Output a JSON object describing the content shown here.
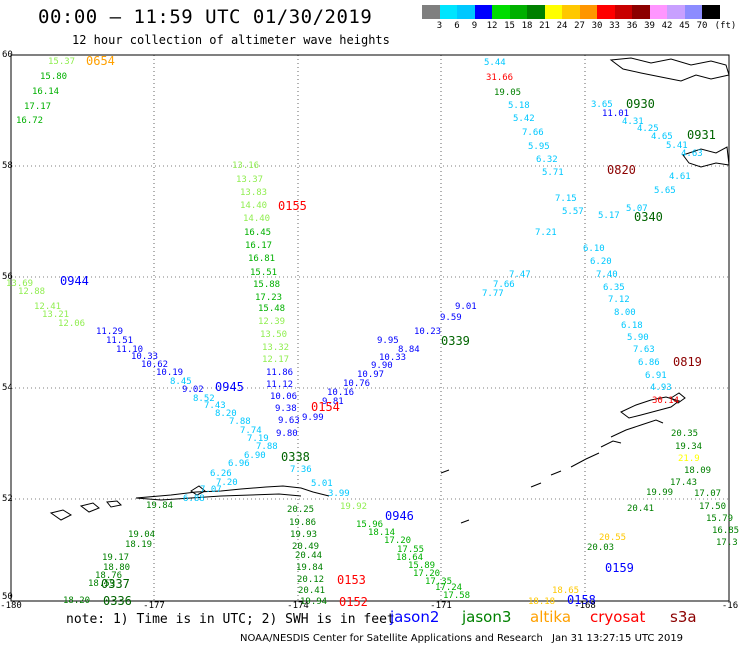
{
  "header": {
    "title": "00:00 – 11:59 UTC 01/30/2019",
    "subtitle": "12 hour collection of altimeter wave heights"
  },
  "colorbar": {
    "unit": "(ft)",
    "labels": [
      "3",
      "6",
      "9",
      "12",
      "15",
      "18",
      "21",
      "24",
      "27",
      "30",
      "33",
      "36",
      "39",
      "42",
      "45",
      "70"
    ],
    "colors": [
      "#7f7f7f",
      "#00e5ff",
      "#00c8ff",
      "#0000ff",
      "#00dd00",
      "#00b000",
      "#008000",
      "#ffff00",
      "#ffc800",
      "#ff9600",
      "#ff0000",
      "#c80000",
      "#8c0000",
      "#ff96ff",
      "#c8a0ff",
      "#8c8cff",
      "#000000"
    ]
  },
  "axes": {
    "y_ticks": [
      "60",
      "58",
      "56",
      "54",
      "52",
      "50"
    ],
    "x_ticks": [
      "-180",
      "-177",
      "-174",
      "-171",
      "-168",
      "-16"
    ]
  },
  "legend": {
    "note": "note: 1) Time is in UTC; 2) SWH is in feet",
    "items": [
      {
        "label": "jason2",
        "color": "#0000ff"
      },
      {
        "label": "jason3",
        "color": "#008000"
      },
      {
        "label": "altika",
        "color": "#ffa000"
      },
      {
        "label": "cryosat",
        "color": "#ff0000"
      },
      {
        "label": "s3a",
        "color": "#8c0000"
      }
    ]
  },
  "footer": {
    "credit": "NOAA/NESDIS Center for Satellite Applications and Research",
    "timestamp": "Jan 31 13:27:15 UTC 2019"
  },
  "map": {
    "time_labels": [
      {
        "t": "0654",
        "c": "#ffa000",
        "x": 86,
        "y": 61
      },
      {
        "t": "0930",
        "c": "#006400",
        "x": 626,
        "y": 104
      },
      {
        "t": "0931",
        "c": "#006400",
        "x": 687,
        "y": 135
      },
      {
        "t": "0820",
        "c": "#8c0000",
        "x": 607,
        "y": 170
      },
      {
        "t": "0155",
        "c": "#ff0000",
        "x": 278,
        "y": 206
      },
      {
        "t": "0340",
        "c": "#006400",
        "x": 634,
        "y": 217
      },
      {
        "t": "0944",
        "c": "#0000ff",
        "x": 60,
        "y": 281
      },
      {
        "t": "0339",
        "c": "#006400",
        "x": 441,
        "y": 341
      },
      {
        "t": "0819",
        "c": "#8c0000",
        "x": 673,
        "y": 362
      },
      {
        "t": "0945",
        "c": "#0000ff",
        "x": 215,
        "y": 387
      },
      {
        "t": "0154",
        "c": "#ff0000",
        "x": 311,
        "y": 407
      },
      {
        "t": "0338",
        "c": "#006400",
        "x": 281,
        "y": 457
      },
      {
        "t": "0946",
        "c": "#0000ff",
        "x": 385,
        "y": 516
      },
      {
        "t": "0153",
        "c": "#ff0000",
        "x": 337,
        "y": 580
      },
      {
        "t": "0152",
        "c": "#ff0000",
        "x": 339,
        "y": 602
      },
      {
        "t": "0159",
        "c": "#0000ff",
        "x": 605,
        "y": 568
      },
      {
        "t": "0158",
        "c": "#0000ff",
        "x": 567,
        "y": 600
      },
      {
        "t": "0337",
        "c": "#006400",
        "x": 101,
        "y": 584
      },
      {
        "t": "0336",
        "c": "#006400",
        "x": 103,
        "y": 601
      }
    ],
    "values": [
      {
        "t": "15.37",
        "c": "#90ee50",
        "x": 48,
        "y": 60
      },
      {
        "t": "15.80",
        "c": "#00b000",
        "x": 40,
        "y": 75
      },
      {
        "t": "16.14",
        "c": "#00b000",
        "x": 32,
        "y": 90
      },
      {
        "t": "17.17",
        "c": "#00b000",
        "x": 24,
        "y": 105
      },
      {
        "t": "16.72",
        "c": "#00b000",
        "x": 16,
        "y": 119
      },
      {
        "t": "5.44",
        "c": "#00c8ff",
        "x": 484,
        "y": 61
      },
      {
        "t": "31.66",
        "c": "#ff0000",
        "x": 486,
        "y": 76
      },
      {
        "t": "19.05",
        "c": "#008000",
        "x": 494,
        "y": 91
      },
      {
        "t": "5.18",
        "c": "#00c8ff",
        "x": 508,
        "y": 104
      },
      {
        "t": "5.42",
        "c": "#00c8ff",
        "x": 513,
        "y": 117
      },
      {
        "t": "7.66",
        "c": "#00c8ff",
        "x": 522,
        "y": 131
      },
      {
        "t": "5.95",
        "c": "#00c8ff",
        "x": 528,
        "y": 145
      },
      {
        "t": "6.32",
        "c": "#00c8ff",
        "x": 536,
        "y": 158
      },
      {
        "t": "5.71",
        "c": "#00c8ff",
        "x": 542,
        "y": 171
      },
      {
        "t": "7.15",
        "c": "#00c8ff",
        "x": 555,
        "y": 197
      },
      {
        "t": "5.57",
        "c": "#00c8ff",
        "x": 562,
        "y": 210
      },
      {
        "t": "3.65",
        "c": "#00c8ff",
        "x": 591,
        "y": 103
      },
      {
        "t": "11.01",
        "c": "#0000ff",
        "x": 602,
        "y": 112
      },
      {
        "t": "4.31",
        "c": "#00c8ff",
        "x": 622,
        "y": 120
      },
      {
        "t": "4.25",
        "c": "#00c8ff",
        "x": 637,
        "y": 127
      },
      {
        "t": "4.65",
        "c": "#00c8ff",
        "x": 651,
        "y": 135
      },
      {
        "t": "5.41",
        "c": "#00c8ff",
        "x": 666,
        "y": 144
      },
      {
        "t": "4.63",
        "c": "#00c8ff",
        "x": 681,
        "y": 152
      },
      {
        "t": "4.61",
        "c": "#00c8ff",
        "x": 669,
        "y": 175
      },
      {
        "t": "5.65",
        "c": "#00c8ff",
        "x": 654,
        "y": 189
      },
      {
        "t": "5.07",
        "c": "#00c8ff",
        "x": 626,
        "y": 207
      },
      {
        "t": "5.17",
        "c": "#00c8ff",
        "x": 598,
        "y": 214
      },
      {
        "t": "6.10",
        "c": "#00c8ff",
        "x": 583,
        "y": 247
      },
      {
        "t": "6.20",
        "c": "#00c8ff",
        "x": 590,
        "y": 260
      },
      {
        "t": "7.40",
        "c": "#00c8ff",
        "x": 596,
        "y": 273
      },
      {
        "t": "6.35",
        "c": "#00c8ff",
        "x": 603,
        "y": 286
      },
      {
        "t": "7.12",
        "c": "#00c8ff",
        "x": 608,
        "y": 298
      },
      {
        "t": "8.00",
        "c": "#00c8ff",
        "x": 614,
        "y": 311
      },
      {
        "t": "6.18",
        "c": "#00c8ff",
        "x": 621,
        "y": 324
      },
      {
        "t": "5.90",
        "c": "#00c8ff",
        "x": 627,
        "y": 336
      },
      {
        "t": "7.63",
        "c": "#00c8ff",
        "x": 633,
        "y": 348
      },
      {
        "t": "6.86",
        "c": "#00c8ff",
        "x": 638,
        "y": 361
      },
      {
        "t": "6.91",
        "c": "#00c8ff",
        "x": 645,
        "y": 374
      },
      {
        "t": "4.93",
        "c": "#00c8ff",
        "x": 650,
        "y": 386
      },
      {
        "t": "30.14",
        "c": "#ff0000",
        "x": 652,
        "y": 399
      },
      {
        "t": "7.21",
        "c": "#00c8ff",
        "x": 535,
        "y": 231
      },
      {
        "t": "7.47",
        "c": "#00c8ff",
        "x": 509,
        "y": 273
      },
      {
        "t": "7.66",
        "c": "#00c8ff",
        "x": 493,
        "y": 283
      },
      {
        "t": "7.77",
        "c": "#00c8ff",
        "x": 482,
        "y": 292
      },
      {
        "t": "9.01",
        "c": "#0000ff",
        "x": 455,
        "y": 305
      },
      {
        "t": "9.59",
        "c": "#0000ff",
        "x": 440,
        "y": 316
      },
      {
        "t": "10.23",
        "c": "#0000ff",
        "x": 414,
        "y": 330
      },
      {
        "t": "9.95",
        "c": "#0000ff",
        "x": 377,
        "y": 339
      },
      {
        "t": "8.84",
        "c": "#0000ff",
        "x": 398,
        "y": 348
      },
      {
        "t": "10.33",
        "c": "#0000ff",
        "x": 379,
        "y": 356
      },
      {
        "t": "9.90",
        "c": "#0000ff",
        "x": 371,
        "y": 364
      },
      {
        "t": "10.97",
        "c": "#0000ff",
        "x": 357,
        "y": 373
      },
      {
        "t": "10.76",
        "c": "#0000ff",
        "x": 343,
        "y": 382
      },
      {
        "t": "10.16",
        "c": "#0000ff",
        "x": 327,
        "y": 391
      },
      {
        "t": "9.81",
        "c": "#0000ff",
        "x": 322,
        "y": 400
      },
      {
        "t": "13.16",
        "c": "#90ee50",
        "x": 232,
        "y": 164
      },
      {
        "t": "13.37",
        "c": "#90ee50",
        "x": 236,
        "y": 178
      },
      {
        "t": "13.83",
        "c": "#90ee50",
        "x": 240,
        "y": 191
      },
      {
        "t": "14.40",
        "c": "#90ee50",
        "x": 240,
        "y": 204
      },
      {
        "t": "14.40",
        "c": "#90ee50",
        "x": 243,
        "y": 217
      },
      {
        "t": "16.45",
        "c": "#00b000",
        "x": 244,
        "y": 231
      },
      {
        "t": "16.17",
        "c": "#00b000",
        "x": 245,
        "y": 244
      },
      {
        "t": "16.81",
        "c": "#00b000",
        "x": 248,
        "y": 257
      },
      {
        "t": "15.51",
        "c": "#00b000",
        "x": 250,
        "y": 271
      },
      {
        "t": "15.88",
        "c": "#00b000",
        "x": 253,
        "y": 283
      },
      {
        "t": "17.23",
        "c": "#00b000",
        "x": 255,
        "y": 296
      },
      {
        "t": "15.48",
        "c": "#00b000",
        "x": 258,
        "y": 307
      },
      {
        "t": "12.39",
        "c": "#90ee50",
        "x": 258,
        "y": 320
      },
      {
        "t": "13.50",
        "c": "#90ee50",
        "x": 260,
        "y": 333
      },
      {
        "t": "13.32",
        "c": "#90ee50",
        "x": 262,
        "y": 346
      },
      {
        "t": "12.17",
        "c": "#90ee50",
        "x": 262,
        "y": 358
      },
      {
        "t": "11.86",
        "c": "#0000ff",
        "x": 266,
        "y": 371
      },
      {
        "t": "11.12",
        "c": "#0000ff",
        "x": 266,
        "y": 383
      },
      {
        "t": "10.06",
        "c": "#0000ff",
        "x": 270,
        "y": 395
      },
      {
        "t": "9.38",
        "c": "#0000ff",
        "x": 275,
        "y": 407
      },
      {
        "t": "9.63",
        "c": "#0000ff",
        "x": 278,
        "y": 419
      },
      {
        "t": "9.99",
        "c": "#0000ff",
        "x": 302,
        "y": 416
      },
      {
        "t": "9.80",
        "c": "#0000ff",
        "x": 276,
        "y": 432
      },
      {
        "t": "13.69",
        "c": "#90ee50",
        "x": 6,
        "y": 282
      },
      {
        "t": "12.88",
        "c": "#90ee50",
        "x": 18,
        "y": 290
      },
      {
        "t": "12.41",
        "c": "#90ee50",
        "x": 34,
        "y": 305
      },
      {
        "t": "13.21",
        "c": "#90ee50",
        "x": 42,
        "y": 313
      },
      {
        "t": "12.06",
        "c": "#90ee50",
        "x": 58,
        "y": 322
      },
      {
        "t": "11.29",
        "c": "#0000ff",
        "x": 96,
        "y": 330
      },
      {
        "t": "11.51",
        "c": "#0000ff",
        "x": 106,
        "y": 339
      },
      {
        "t": "11.10",
        "c": "#0000ff",
        "x": 116,
        "y": 348
      },
      {
        "t": "10.33",
        "c": "#0000ff",
        "x": 131,
        "y": 355
      },
      {
        "t": "10.62",
        "c": "#0000ff",
        "x": 141,
        "y": 363
      },
      {
        "t": "10.19",
        "c": "#0000ff",
        "x": 156,
        "y": 371
      },
      {
        "t": "8.45",
        "c": "#00c8ff",
        "x": 170,
        "y": 380
      },
      {
        "t": "9.02",
        "c": "#0000ff",
        "x": 182,
        "y": 388
      },
      {
        "t": "8.52",
        "c": "#00c8ff",
        "x": 193,
        "y": 397
      },
      {
        "t": "7.43",
        "c": "#00c8ff",
        "x": 204,
        "y": 404
      },
      {
        "t": "8.20",
        "c": "#00c8ff",
        "x": 215,
        "y": 412
      },
      {
        "t": "7.88",
        "c": "#00c8ff",
        "x": 229,
        "y": 420
      },
      {
        "t": "7.74",
        "c": "#00c8ff",
        "x": 240,
        "y": 429
      },
      {
        "t": "7.19",
        "c": "#00c8ff",
        "x": 247,
        "y": 437
      },
      {
        "t": "7.88",
        "c": "#00c8ff",
        "x": 256,
        "y": 445
      },
      {
        "t": "6.90",
        "c": "#00c8ff",
        "x": 244,
        "y": 454
      },
      {
        "t": "6.96",
        "c": "#00c8ff",
        "x": 228,
        "y": 462
      },
      {
        "t": "6.26",
        "c": "#00c8ff",
        "x": 210,
        "y": 472
      },
      {
        "t": "7.20",
        "c": "#00c8ff",
        "x": 216,
        "y": 481
      },
      {
        "t": "7.07",
        "c": "#00c8ff",
        "x": 200,
        "y": 488
      },
      {
        "t": "6.88",
        "c": "#00c8ff",
        "x": 183,
        "y": 497
      },
      {
        "t": "7.36",
        "c": "#00c8ff",
        "x": 290,
        "y": 468
      },
      {
        "t": "5.01",
        "c": "#00c8ff",
        "x": 311,
        "y": 482
      },
      {
        "t": "3.99",
        "c": "#00c8ff",
        "x": 328,
        "y": 492
      },
      {
        "t": "20.25",
        "c": "#008000",
        "x": 287,
        "y": 508
      },
      {
        "t": "19.86",
        "c": "#008000",
        "x": 289,
        "y": 521
      },
      {
        "t": "19.93",
        "c": "#008000",
        "x": 290,
        "y": 533
      },
      {
        "t": "20.49",
        "c": "#008000",
        "x": 292,
        "y": 545
      },
      {
        "t": "20.44",
        "c": "#008000",
        "x": 295,
        "y": 554
      },
      {
        "t": "19.84",
        "c": "#008000",
        "x": 296,
        "y": 566
      },
      {
        "t": "20.12",
        "c": "#008000",
        "x": 297,
        "y": 578
      },
      {
        "t": "20.41",
        "c": "#008000",
        "x": 298,
        "y": 589
      },
      {
        "t": "19.94",
        "c": "#008000",
        "x": 300,
        "y": 600
      },
      {
        "t": "19.92",
        "c": "#90ee50",
        "x": 340,
        "y": 505
      },
      {
        "t": "15.96",
        "c": "#00b000",
        "x": 356,
        "y": 523
      },
      {
        "t": "18.14",
        "c": "#00b000",
        "x": 368,
        "y": 531
      },
      {
        "t": "17.20",
        "c": "#00b000",
        "x": 384,
        "y": 539
      },
      {
        "t": "17.55",
        "c": "#00b000",
        "x": 397,
        "y": 548
      },
      {
        "t": "18.64",
        "c": "#00b000",
        "x": 396,
        "y": 556
      },
      {
        "t": "15.89",
        "c": "#00b000",
        "x": 408,
        "y": 564
      },
      {
        "t": "17.20",
        "c": "#00b000",
        "x": 413,
        "y": 572
      },
      {
        "t": "17.35",
        "c": "#00b000",
        "x": 425,
        "y": 580
      },
      {
        "t": "17.24",
        "c": "#00b000",
        "x": 435,
        "y": 586
      },
      {
        "t": "17.58",
        "c": "#00b000",
        "x": 443,
        "y": 594
      },
      {
        "t": "19.84",
        "c": "#008000",
        "x": 146,
        "y": 504
      },
      {
        "t": "19.04",
        "c": "#008000",
        "x": 128,
        "y": 533
      },
      {
        "t": "18.19",
        "c": "#008000",
        "x": 125,
        "y": 543
      },
      {
        "t": "19.17",
        "c": "#008000",
        "x": 102,
        "y": 556
      },
      {
        "t": "18.80",
        "c": "#008000",
        "x": 103,
        "y": 566
      },
      {
        "t": "18.76",
        "c": "#008000",
        "x": 95,
        "y": 574
      },
      {
        "t": "18.59",
        "c": "#008000",
        "x": 88,
        "y": 582
      },
      {
        "t": "18.20",
        "c": "#008000",
        "x": 63,
        "y": 599
      },
      {
        "t": "20.35",
        "c": "#008000",
        "x": 671,
        "y": 432
      },
      {
        "t": "19.34",
        "c": "#008000",
        "x": 675,
        "y": 445
      },
      {
        "t": "21.9",
        "c": "#ffff00",
        "x": 678,
        "y": 457
      },
      {
        "t": "18.09",
        "c": "#008000",
        "x": 684,
        "y": 469
      },
      {
        "t": "17.43",
        "c": "#008000",
        "x": 670,
        "y": 481
      },
      {
        "t": "17.07",
        "c": "#008000",
        "x": 694,
        "y": 492
      },
      {
        "t": "17.50",
        "c": "#008000",
        "x": 699,
        "y": 505
      },
      {
        "t": "15.79",
        "c": "#008000",
        "x": 706,
        "y": 517
      },
      {
        "t": "16.85",
        "c": "#008000",
        "x": 712,
        "y": 529
      },
      {
        "t": "17.3",
        "c": "#008000",
        "x": 716,
        "y": 541
      },
      {
        "t": "19.99",
        "c": "#008000",
        "x": 646,
        "y": 491
      },
      {
        "t": "20.41",
        "c": "#008000",
        "x": 627,
        "y": 507
      },
      {
        "t": "20.03",
        "c": "#008000",
        "x": 587,
        "y": 546
      },
      {
        "t": "20.55",
        "c": "#ffc800",
        "x": 599,
        "y": 536
      },
      {
        "t": "18.65",
        "c": "#ffc800",
        "x": 552,
        "y": 589
      },
      {
        "t": "18.18",
        "c": "#ffc800",
        "x": 528,
        "y": 600
      }
    ]
  }
}
